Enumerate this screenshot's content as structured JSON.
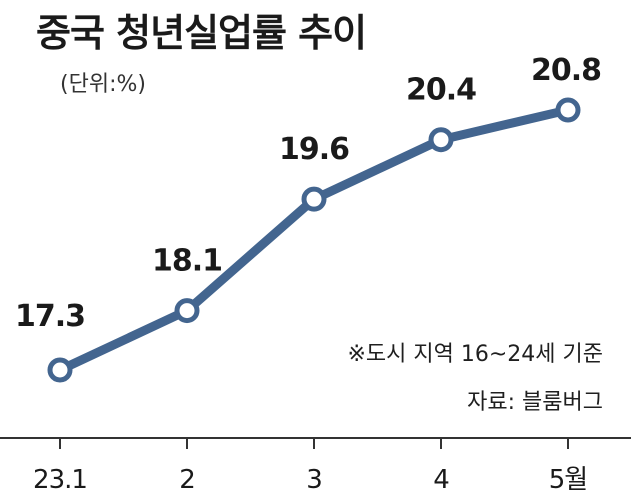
{
  "title": "중국 청년실업률 추이",
  "unit": "(단위:%)",
  "notes": {
    "scope": "※도시 지역 16~24세 기준",
    "source": "자료: 블룸버그"
  },
  "colors": {
    "line": "#43658f",
    "marker_fill": "#ffffff",
    "axis": "#333333",
    "text": "#1a1a1a"
  },
  "chart_data": {
    "type": "line",
    "categories": [
      "23.1",
      "2",
      "3",
      "4",
      "5월"
    ],
    "series": [
      {
        "values": [
          17.3,
          18.1,
          19.6,
          20.4,
          20.8
        ]
      }
    ],
    "data_labels": [
      "17.3",
      "18.1",
      "19.6",
      "20.4",
      "20.8"
    ],
    "title": "중국 청년실업률 추이",
    "xlabel": "",
    "ylabel": "(단위:%)",
    "grid": false,
    "legend": "none"
  }
}
